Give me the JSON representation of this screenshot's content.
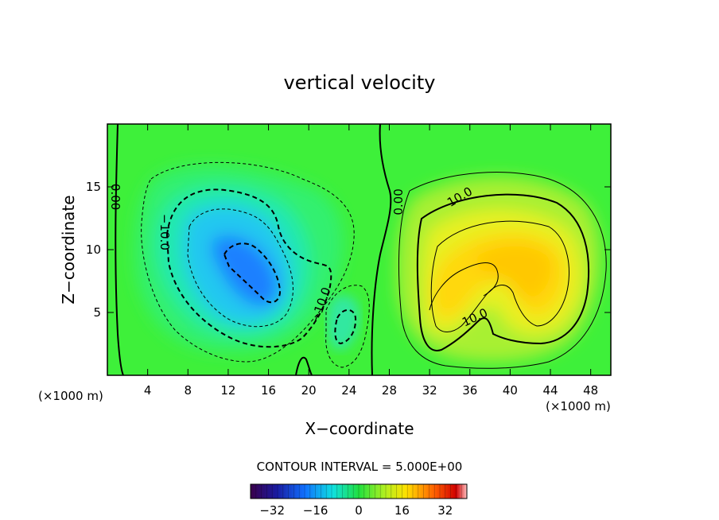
{
  "chart_data": {
    "type": "heatmap",
    "title": "vertical velocity",
    "xlabel": "X−coordinate",
    "ylabel": "Z−coordinate",
    "x_unit_left": "(×1000 m)",
    "x_unit_right": "(×1000 m)",
    "xlim": [
      0,
      50
    ],
    "ylim": [
      0,
      20
    ],
    "x_ticks": [
      4,
      8,
      12,
      16,
      20,
      24,
      28,
      32,
      36,
      40,
      44,
      48
    ],
    "y_ticks": [
      5,
      10,
      15
    ],
    "contour_interval_text": "CONTOUR INTERVAL = 5.000E+00",
    "contour_labels": [
      {
        "text": "0.00",
        "x": 0.8,
        "y": 14.2,
        "angle": 90
      },
      {
        "text": "0.00",
        "x": 28.9,
        "y": 13.8,
        "angle": -90
      },
      {
        "text": "10.0",
        "x": 35.0,
        "y": 14.2,
        "angle": -30
      },
      {
        "text": "10.0",
        "x": 36.5,
        "y": 4.6,
        "angle": -25
      },
      {
        "text": "−10.0",
        "x": 5.7,
        "y": 11.4,
        "angle": 90
      },
      {
        "text": "−10.0",
        "x": 21.2,
        "y": 5.6,
        "angle": -70
      }
    ],
    "colorbar": {
      "min": -40,
      "max": 40,
      "ticks": [
        -32,
        -16,
        0,
        16,
        32
      ],
      "tick_labels": [
        "−32",
        "−16",
        "0",
        "16",
        "32"
      ]
    },
    "features": [
      {
        "kind": "downdraft",
        "center_x": 14,
        "center_z": 8.5,
        "peak": -28
      },
      {
        "kind": "updraft",
        "center_x": 40,
        "center_z": 9.5,
        "peak": 18
      }
    ]
  }
}
